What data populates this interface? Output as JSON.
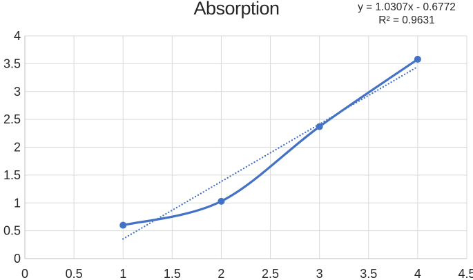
{
  "chart_data": {
    "type": "line",
    "title": "Absorption",
    "xlabel": "",
    "ylabel": "",
    "xlim": [
      0,
      4.5
    ],
    "ylim": [
      0,
      4
    ],
    "x_ticks": [
      0,
      0.5,
      1,
      1.5,
      2,
      2.5,
      3,
      3.5,
      4,
      4.5
    ],
    "y_ticks": [
      0,
      0.5,
      1,
      1.5,
      2,
      2.5,
      3,
      3.5,
      4
    ],
    "grid": true,
    "legend_position": "none",
    "series": [
      {
        "name": "Absorption",
        "x": [
          1,
          2,
          3,
          4
        ],
        "y": [
          0.6,
          1.03,
          2.37,
          3.58
        ],
        "color": "#4472C4",
        "smooth": true,
        "marker": "circle"
      }
    ],
    "trendline": {
      "type": "linear",
      "slope": 1.0307,
      "intercept": -0.6772,
      "x_range": [
        1,
        4
      ],
      "equation_label": "y = 1.0307x - 0.6772",
      "r_squared_label": "R² = 0.9631",
      "style": "dotted",
      "color": "#4472C4"
    },
    "colors": {
      "series": "#4472C4",
      "gridline": "#D9D9D9",
      "axis_line": "#BFBFBF",
      "text": "#262626",
      "background": "#FFFFFF"
    }
  }
}
